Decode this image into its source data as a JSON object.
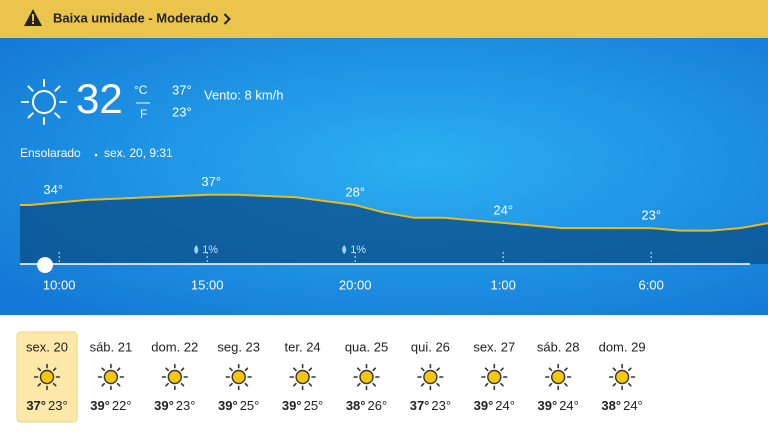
{
  "alert": {
    "text": "Baixa umidade - Moderado"
  },
  "current": {
    "temp": "32",
    "unit_c": "°C",
    "unit_f": "F",
    "high": "37°",
    "low": "23°",
    "wind": "Vento: 8 km/h",
    "condition": "Ensolarado",
    "date": "sex. 20, 9:31"
  },
  "hourly": {
    "temps": [
      33,
      34,
      35,
      35.5,
      36,
      36.5,
      37,
      37,
      36.5,
      36,
      34.5,
      33,
      30,
      28,
      28,
      27,
      26,
      25,
      24,
      24,
      24,
      24,
      23,
      23,
      24,
      26
    ],
    "ylim": [
      10,
      40
    ],
    "labels": [
      "34°",
      "37°",
      "28°",
      "24°",
      "23°"
    ],
    "precip": [
      "1%",
      "1%"
    ],
    "times": [
      "10:00",
      "15:00",
      "20:00",
      "1:00",
      "6:00"
    ]
  },
  "daily": [
    {
      "day": "sex. 20",
      "high": "37°",
      "low": "23°"
    },
    {
      "day": "sáb. 21",
      "high": "39°",
      "low": "22°"
    },
    {
      "day": "dom. 22",
      "high": "39°",
      "low": "23°"
    },
    {
      "day": "seg. 23",
      "high": "39°",
      "low": "25°"
    },
    {
      "day": "ter. 24",
      "high": "39°",
      "low": "25°"
    },
    {
      "day": "qua. 25",
      "high": "38°",
      "low": "26°"
    },
    {
      "day": "qui. 26",
      "high": "37°",
      "low": "23°"
    },
    {
      "day": "sex. 27",
      "high": "39°",
      "low": "24°"
    },
    {
      "day": "sáb. 28",
      "high": "39°",
      "low": "24°"
    },
    {
      "day": "dom. 29",
      "high": "38°",
      "low": "24°"
    }
  ]
}
